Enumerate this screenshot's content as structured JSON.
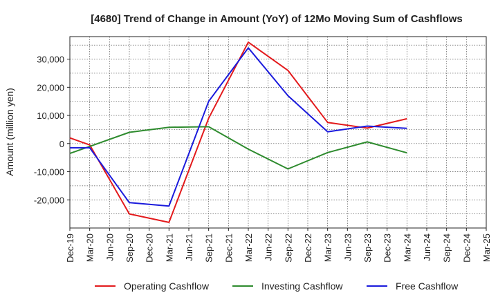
{
  "chart_data": {
    "type": "line",
    "title": "[4680]  Trend of Change in Amount (YoY) of 12Mo Moving Sum of Cashflows",
    "xlabel": "",
    "ylabel": "Amount (million yen)",
    "ylim": [
      -30000,
      38000
    ],
    "yticks": [
      30000,
      20000,
      10000,
      0,
      -10000,
      -20000
    ],
    "ytick_labels": [
      "30,000",
      "20,000",
      "10,000",
      "0",
      "-10,000",
      "-20,000"
    ],
    "categories": [
      "Dec-19",
      "Mar-20",
      "Jun-20",
      "Sep-20",
      "Dec-20",
      "Mar-21",
      "Jun-21",
      "Sep-21",
      "Dec-21",
      "Mar-22",
      "Jun-22",
      "Sep-22",
      "Dec-22",
      "Mar-23",
      "Jun-23",
      "Sep-23",
      "Dec-23",
      "Mar-24",
      "Jun-24",
      "Sep-24",
      "Dec-24",
      "Mar-25"
    ],
    "grid": true,
    "legend_position": "bottom",
    "series": [
      {
        "name": "Operating Cashflow",
        "color": "#e31a1c",
        "points": [
          [
            0,
            2000
          ],
          [
            1,
            -500
          ],
          [
            3,
            -25000
          ],
          [
            5,
            -28000
          ],
          [
            7,
            9000
          ],
          [
            9,
            36000
          ],
          [
            11,
            26000
          ],
          [
            13,
            7500
          ],
          [
            15,
            5500
          ],
          [
            17,
            8800
          ]
        ]
      },
      {
        "name": "Investing Cashflow",
        "color": "#2e8b2e",
        "points": [
          [
            0,
            -3500
          ],
          [
            1,
            -1000
          ],
          [
            3,
            4000
          ],
          [
            5,
            5800
          ],
          [
            7,
            6000
          ],
          [
            9,
            -2000
          ],
          [
            11,
            -9000
          ],
          [
            13,
            -3200
          ],
          [
            15,
            600
          ],
          [
            17,
            -3300
          ]
        ]
      },
      {
        "name": "Free Cashflow",
        "color": "#1a1adc",
        "points": [
          [
            0,
            -1500
          ],
          [
            1,
            -1500
          ],
          [
            3,
            -21000
          ],
          [
            5,
            -22200
          ],
          [
            7,
            15000
          ],
          [
            9,
            34000
          ],
          [
            11,
            17000
          ],
          [
            13,
            4200
          ],
          [
            15,
            6200
          ],
          [
            17,
            5400
          ]
        ]
      }
    ]
  }
}
